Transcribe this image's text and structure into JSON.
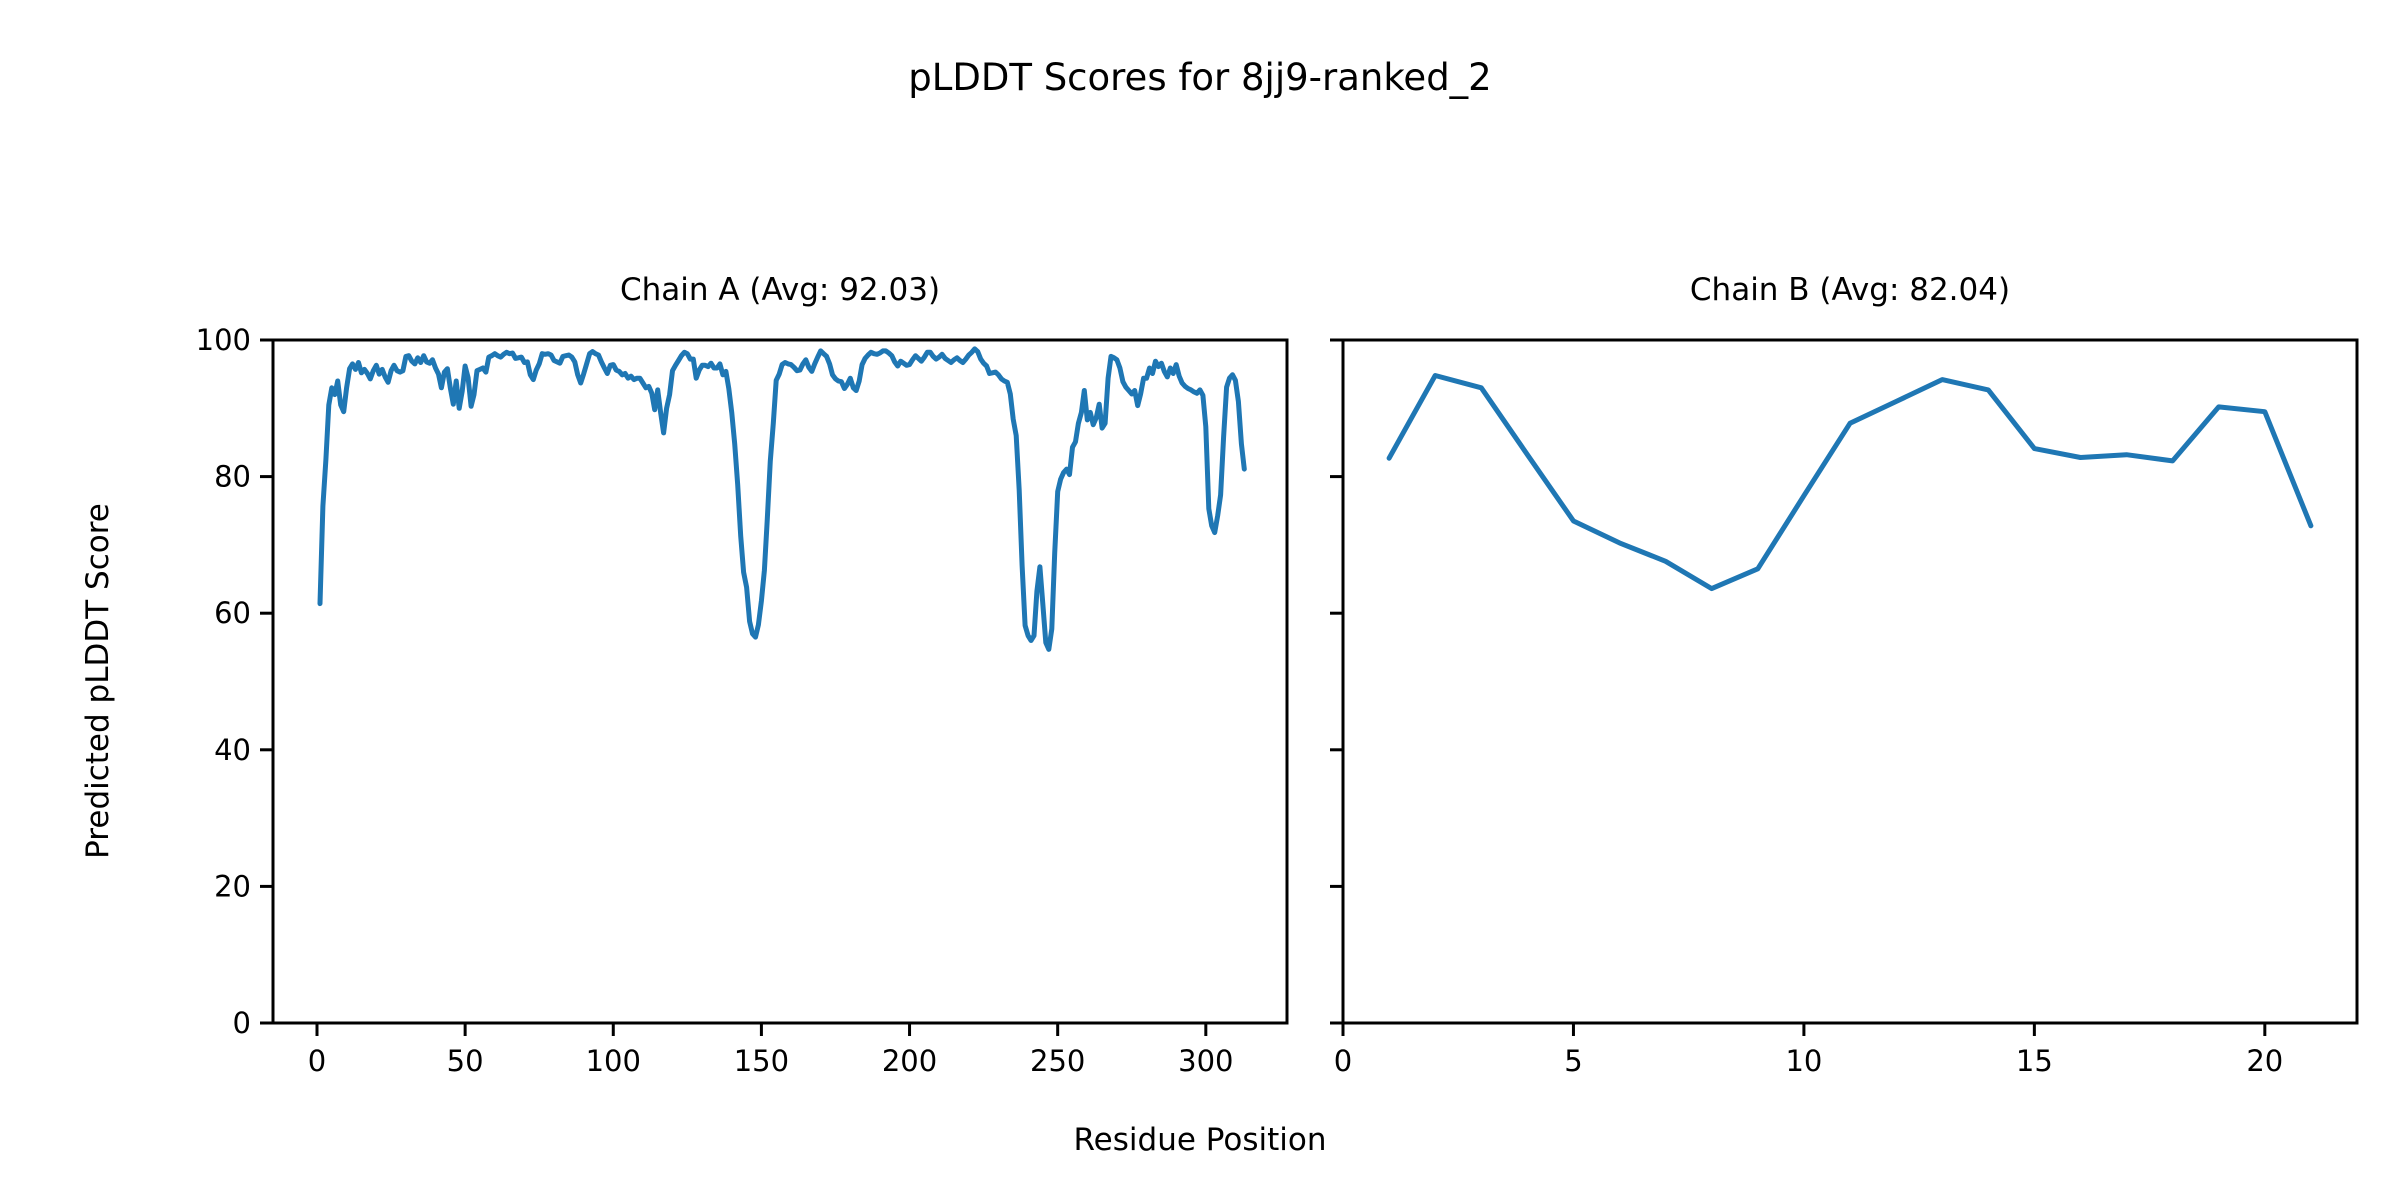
{
  "figure": {
    "title": "pLDDT Scores for 8jj9-ranked_2",
    "xlabel": "Residue Position",
    "ylabel": "Predicted pLDDT Score",
    "background_color": "#ffffff",
    "text_color": "#000000",
    "line_color": "#1f77b4"
  },
  "chart_data": [
    {
      "type": "line",
      "name": "chain-a",
      "title": "Chain A (Avg: 92.03)",
      "avg_label": 92.03,
      "color": "#1f77b4",
      "x_start": 1,
      "xlim": [
        -14.85,
        327.4
      ],
      "ylim": [
        0,
        100
      ],
      "xticks": [
        0,
        50,
        100,
        150,
        200,
        250,
        300
      ],
      "yticks": [
        0,
        20,
        40,
        60,
        80,
        100
      ],
      "show_ytick_labels": true,
      "grid": false,
      "values": [
        61.4,
        75.7,
        82.5,
        90.5,
        93.0,
        92.0,
        94.0,
        90.5,
        89.5,
        93.0,
        95.8,
        96.5,
        95.7,
        96.7,
        95.2,
        95.7,
        95.1,
        94.3,
        95.5,
        96.3,
        95.0,
        95.7,
        94.6,
        93.8,
        95.5,
        96.3,
        95.5,
        95.3,
        95.5,
        97.6,
        97.7,
        96.9,
        96.5,
        97.4,
        96.7,
        97.7,
        96.8,
        96.6,
        97.1,
        95.9,
        95.0,
        93.0,
        95.3,
        95.8,
        93.0,
        90.6,
        94.0,
        90.0,
        92.5,
        96.2,
        94.5,
        90.3,
        92.0,
        95.5,
        95.7,
        95.9,
        95.3,
        97.5,
        97.7,
        98.0,
        97.7,
        97.5,
        97.9,
        98.2,
        98.0,
        98.1,
        97.3,
        97.4,
        97.5,
        96.7,
        96.8,
        94.9,
        94.2,
        95.6,
        96.5,
        98.0,
        97.9,
        98.0,
        97.8,
        97.0,
        96.8,
        96.6,
        97.6,
        97.7,
        97.8,
        97.5,
        96.8,
        94.9,
        93.7,
        95.0,
        96.5,
        98.0,
        98.3,
        98.0,
        97.8,
        96.8,
        95.9,
        95.1,
        96.3,
        96.4,
        95.6,
        95.4,
        94.9,
        95.1,
        94.4,
        94.7,
        94.2,
        94.4,
        94.4,
        93.7,
        93.0,
        93.2,
        92.2,
        89.8,
        92.7,
        89.3,
        86.4,
        90.0,
        92.0,
        95.5,
        96.3,
        97.0,
        97.7,
        98.2,
        98.0,
        97.2,
        97.2,
        94.4,
        95.6,
        96.3,
        96.3,
        96.1,
        96.6,
        95.9,
        95.9,
        96.5,
        94.9,
        95.4,
        92.9,
        89.3,
        84.8,
        78.8,
        71.3,
        66.0,
        63.8,
        58.8,
        57.0,
        56.5,
        58.3,
        61.8,
        66.3,
        73.8,
        82.3,
        87.8,
        94.1,
        95.0,
        96.4,
        96.7,
        96.5,
        96.4,
        96.0,
        95.5,
        95.6,
        96.5,
        97.1,
        96.0,
        95.4,
        96.5,
        97.5,
        98.4,
        98.0,
        97.6,
        96.5,
        94.9,
        94.3,
        94.0,
        93.9,
        92.9,
        93.5,
        94.4,
        93.0,
        92.6,
        94.0,
        96.4,
        97.3,
        97.8,
        98.2,
        98.0,
        97.9,
        98.1,
        98.4,
        98.4,
        98.1,
        97.7,
        96.8,
        96.2,
        96.9,
        96.6,
        96.3,
        96.4,
        97.1,
        97.7,
        97.3,
        96.9,
        97.5,
        98.2,
        98.2,
        97.6,
        97.2,
        97.5,
        97.9,
        97.3,
        97.0,
        96.7,
        97.1,
        97.4,
        97.0,
        96.7,
        97.2,
        97.8,
        98.2,
        98.7,
        98.3,
        97.2,
        96.6,
        96.2,
        95.1,
        95.2,
        95.3,
        94.9,
        94.3,
        94.0,
        93.8,
        92.1,
        88.4,
        86.0,
        78.0,
        67.0,
        58.2,
        56.7,
        56.0,
        56.7,
        63.2,
        66.8,
        61.2,
        55.7,
        54.7,
        57.7,
        68.8,
        77.8,
        79.6,
        80.6,
        81.1,
        80.3,
        84.3,
        85.1,
        87.8,
        89.4,
        92.6,
        88.3,
        89.4,
        87.6,
        88.6,
        90.6,
        87.1,
        87.8,
        94.4,
        97.6,
        97.4,
        97.1,
        95.9,
        93.9,
        93.1,
        92.6,
        92.1,
        92.6,
        90.4,
        92.1,
        94.4,
        94.4,
        95.9,
        95.1,
        96.9,
        96.1,
        96.6,
        95.4,
        94.6,
        95.9,
        95.1,
        96.4,
        94.7,
        93.7,
        93.2,
        92.9,
        92.7,
        92.4,
        92.2,
        92.7,
        91.9,
        87.3,
        75.3,
        72.8,
        71.8,
        74.3,
        77.3,
        85.8,
        93.1,
        94.4,
        94.9,
        94.1,
        91.0,
        84.8,
        81.1
      ]
    },
    {
      "type": "line",
      "name": "chain-b",
      "title": "Chain B (Avg: 82.04)",
      "avg_label": 82.04,
      "color": "#1f77b4",
      "x_start": 1,
      "xlim": [
        0,
        22
      ],
      "ylim": [
        0,
        100
      ],
      "xticks": [
        0,
        5,
        10,
        15,
        20
      ],
      "yticks": [
        0,
        20,
        40,
        60,
        80,
        100
      ],
      "show_ytick_labels": false,
      "grid": false,
      "values": [
        82.7,
        94.8,
        93.0,
        83.2,
        73.5,
        70.3,
        67.6,
        63.6,
        66.5,
        77.2,
        87.8,
        91.0,
        94.2,
        92.7,
        84.1,
        82.8,
        83.2,
        82.3,
        90.2,
        89.5,
        72.8
      ]
    }
  ]
}
